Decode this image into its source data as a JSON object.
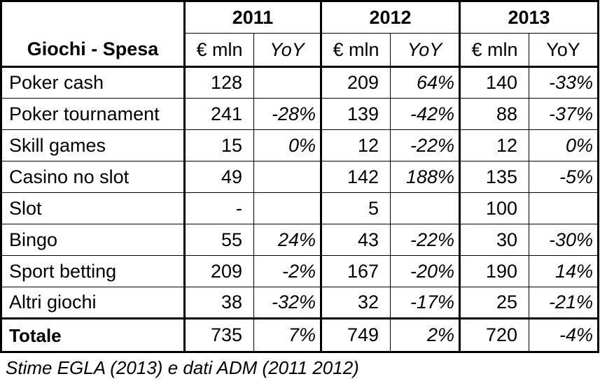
{
  "table": {
    "corner_label": "Giochi - Spesa",
    "years": [
      "2011",
      "2012",
      "2013"
    ],
    "sub_headers": [
      {
        "label": "€ mln",
        "italic": false
      },
      {
        "label": "YoY",
        "italic": true
      },
      {
        "label": "€ mln",
        "italic": false
      },
      {
        "label": "YoY",
        "italic": true
      },
      {
        "label": "€ mln",
        "italic": false
      },
      {
        "label": "YoY",
        "italic": false
      }
    ],
    "rows": [
      {
        "name": "Poker cash",
        "values": [
          "128",
          "",
          "209",
          "64%",
          "140",
          "-33%"
        ]
      },
      {
        "name": "Poker tournament",
        "values": [
          "241",
          "-28%",
          "139",
          "-42%",
          "88",
          "-37%"
        ]
      },
      {
        "name": "Skill games",
        "values": [
          "15",
          "0%",
          "12",
          "-22%",
          "12",
          "0%"
        ]
      },
      {
        "name": "Casino no slot",
        "values": [
          "49",
          "",
          "142",
          "188%",
          "135",
          "-5%"
        ]
      },
      {
        "name": "Slot",
        "values": [
          "-",
          "",
          "5",
          "",
          "100",
          ""
        ]
      },
      {
        "name": "Bingo",
        "values": [
          "55",
          "24%",
          "43",
          "-22%",
          "30",
          "-30%"
        ]
      },
      {
        "name": "Sport betting",
        "values": [
          "209",
          "-2%",
          "167",
          "-20%",
          "190",
          "14%"
        ]
      },
      {
        "name": "Altri giochi",
        "values": [
          "38",
          "-32%",
          "32",
          "-17%",
          "25",
          "-21%"
        ]
      }
    ],
    "total": {
      "name": "Totale",
      "values": [
        "735",
        "7%",
        "749",
        "2%",
        "720",
        "-4%"
      ]
    }
  },
  "caption": "Stime EGLA (2013) e dati ADM (2011 2012)"
}
